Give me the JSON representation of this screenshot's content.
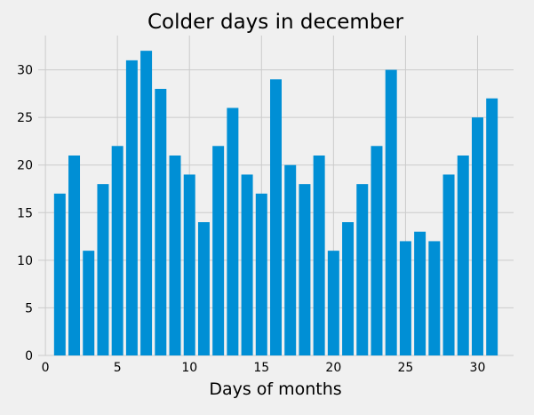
{
  "chart_data": {
    "type": "bar",
    "title": "Colder days in december",
    "xlabel": "Days of months",
    "ylabel": "",
    "x": [
      1,
      2,
      3,
      4,
      5,
      6,
      7,
      8,
      9,
      10,
      11,
      12,
      13,
      14,
      15,
      16,
      17,
      18,
      19,
      20,
      21,
      22,
      23,
      24,
      25,
      26,
      27,
      28,
      29,
      30,
      31
    ],
    "values": [
      17,
      21,
      11,
      18,
      22,
      31,
      32,
      28,
      21,
      19,
      14,
      22,
      26,
      19,
      17,
      29,
      20,
      18,
      21,
      11,
      14,
      18,
      22,
      30,
      12,
      13,
      12,
      19,
      21,
      25,
      27
    ],
    "xlim": [
      -0.5,
      32.5
    ],
    "ylim": [
      0,
      33.6
    ],
    "xticks": [
      0,
      5,
      10,
      15,
      20,
      25,
      30
    ],
    "yticks": [
      0,
      5,
      10,
      15,
      20,
      25,
      30
    ],
    "grid": true,
    "colors": {
      "bar": "#008fd5",
      "background": "#f0f0f0",
      "grid": "#cbcbcb",
      "text": "#000000"
    }
  }
}
